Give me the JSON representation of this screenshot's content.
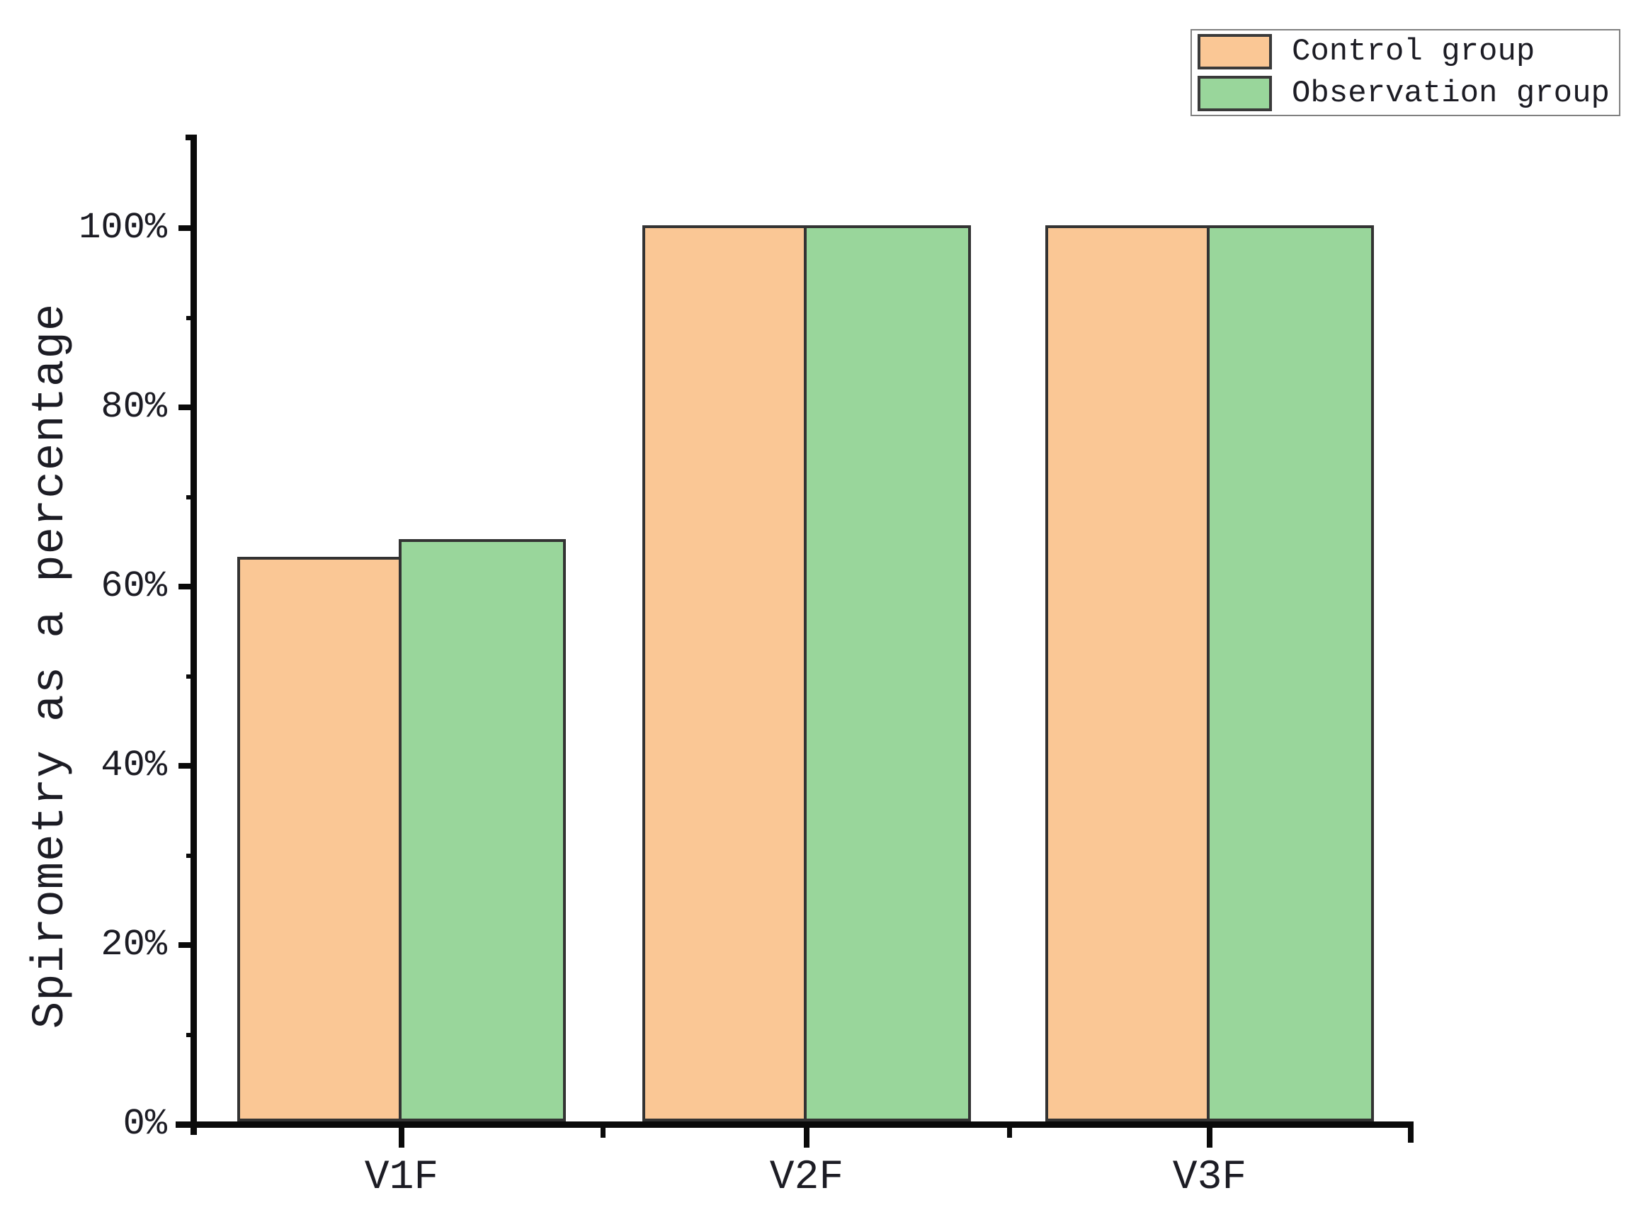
{
  "chart_data": {
    "type": "bar",
    "title": "",
    "xlabel": "",
    "ylabel": "Spirometry as a percentage",
    "categories": [
      "V1F",
      "V2F",
      "V3F"
    ],
    "series": [
      {
        "name": "Control group",
        "color": "#FAC795",
        "values": [
          63,
          100,
          100
        ]
      },
      {
        "name": "Observation group",
        "color": "#99D69B",
        "values": [
          65,
          100,
          100
        ]
      }
    ],
    "ylim": [
      0,
      110
    ],
    "yticks_major": [
      0,
      20,
      40,
      60,
      80,
      100
    ],
    "yticks_minor": [
      10,
      30,
      50,
      70,
      90
    ],
    "ytick_suffix": "%",
    "grid": false,
    "legend_position": "top-right",
    "colors": {
      "bar_edge": "#333333",
      "axis": "#0a0a0a",
      "text": "#1c1c24",
      "legend_border": "#808080",
      "background": "#ffffff"
    }
  }
}
